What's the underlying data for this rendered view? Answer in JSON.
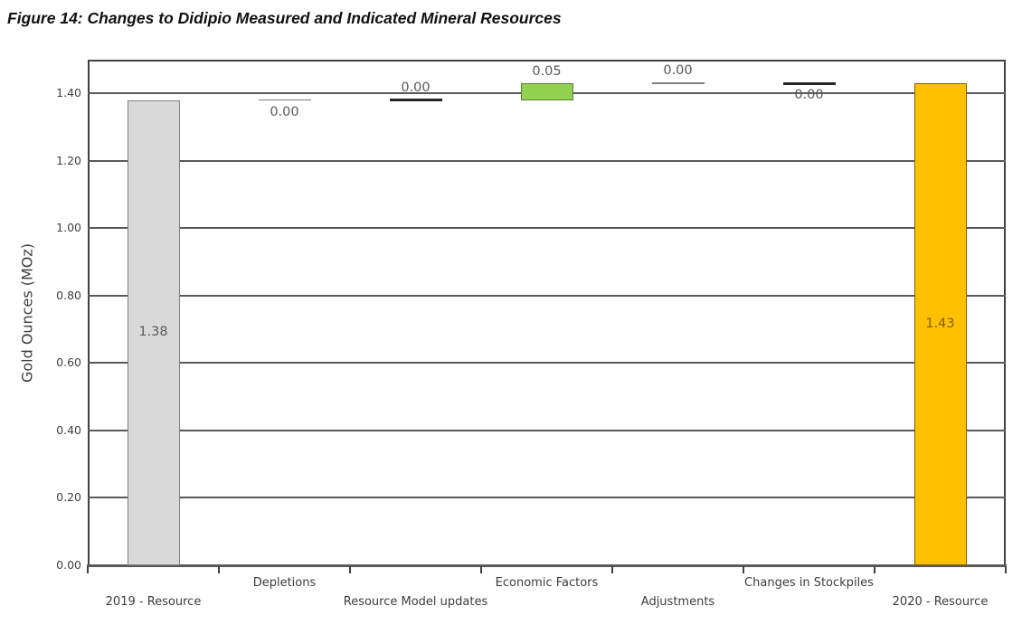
{
  "title": "Figure 14: Changes to Didipio Measured and Indicated Mineral Resources",
  "chart_data": {
    "type": "bar",
    "subtype": "waterfall",
    "title": "Figure 14: Changes to Didipio Measured and Indicated Mineral Resources",
    "xlabel": "",
    "ylabel": "Gold Ounces (MOz)",
    "ylim": [
      0,
      1.5
    ],
    "ytick_step": 0.2,
    "yticks": [
      "0.00",
      "0.20",
      "0.40",
      "0.60",
      "0.80",
      "1.00",
      "1.20",
      "1.40"
    ],
    "grid": true,
    "legend": "none",
    "categories": [
      "2019 - Resource",
      "Depletions",
      "Resource Model updates",
      "Economic Factors",
      "Adjustments",
      "Changes in Stockpiles",
      "2020 - Resource"
    ],
    "values": [
      1.38,
      0.0,
      0.0,
      0.05,
      0.0,
      0.0,
      1.43
    ],
    "cumulative_levels": [
      1.38,
      1.38,
      1.38,
      1.43,
      1.43,
      1.43,
      1.43
    ],
    "colors": {
      "base_bar_fill": "#d9d9d9",
      "base_bar_stroke": "#7f7f7f",
      "increase_bar_fill": "#92d050",
      "increase_bar_stroke": "#538135",
      "final_bar_fill": "#ffc000",
      "final_bar_stroke": "#7f6000",
      "gridline": "#595959",
      "thin_marker": "#7f7f7f",
      "thick_marker": "#262626",
      "value_label": "#595959",
      "final_value_label": "#7f6000",
      "axis_text": "#3d3d3d"
    },
    "elements": [
      {
        "kind": "bar",
        "category": "2019 - Resource",
        "from": 0,
        "to": 1.38,
        "label": "1.38",
        "label_pos": "center",
        "fill": "#d9d9d9",
        "stroke": "#7f7f7f",
        "label_color": "#595959"
      },
      {
        "kind": "line",
        "category": "Depletions",
        "level": 1.38,
        "label": "0.00",
        "label_pos": "below",
        "style": "thin"
      },
      {
        "kind": "line",
        "category": "Resource Model updates",
        "level": 1.38,
        "label": "0.00",
        "label_pos": "above",
        "style": "thick"
      },
      {
        "kind": "bar",
        "category": "Economic Factors",
        "from": 1.38,
        "to": 1.43,
        "label": "0.05",
        "label_pos": "above",
        "fill": "#92d050",
        "stroke": "#538135",
        "label_color": "#595959"
      },
      {
        "kind": "line",
        "category": "Adjustments",
        "level": 1.43,
        "label": "0.00",
        "label_pos": "above",
        "style": "thin"
      },
      {
        "kind": "line",
        "category": "Changes in Stockpiles",
        "level": 1.43,
        "label": "0.00",
        "label_pos": "below",
        "style": "thick"
      },
      {
        "kind": "bar",
        "category": "2020 - Resource",
        "from": 0,
        "to": 1.43,
        "label": "1.43",
        "label_pos": "center",
        "fill": "#ffc000",
        "stroke": "#7f6000",
        "label_color": "#7f6000"
      }
    ]
  }
}
